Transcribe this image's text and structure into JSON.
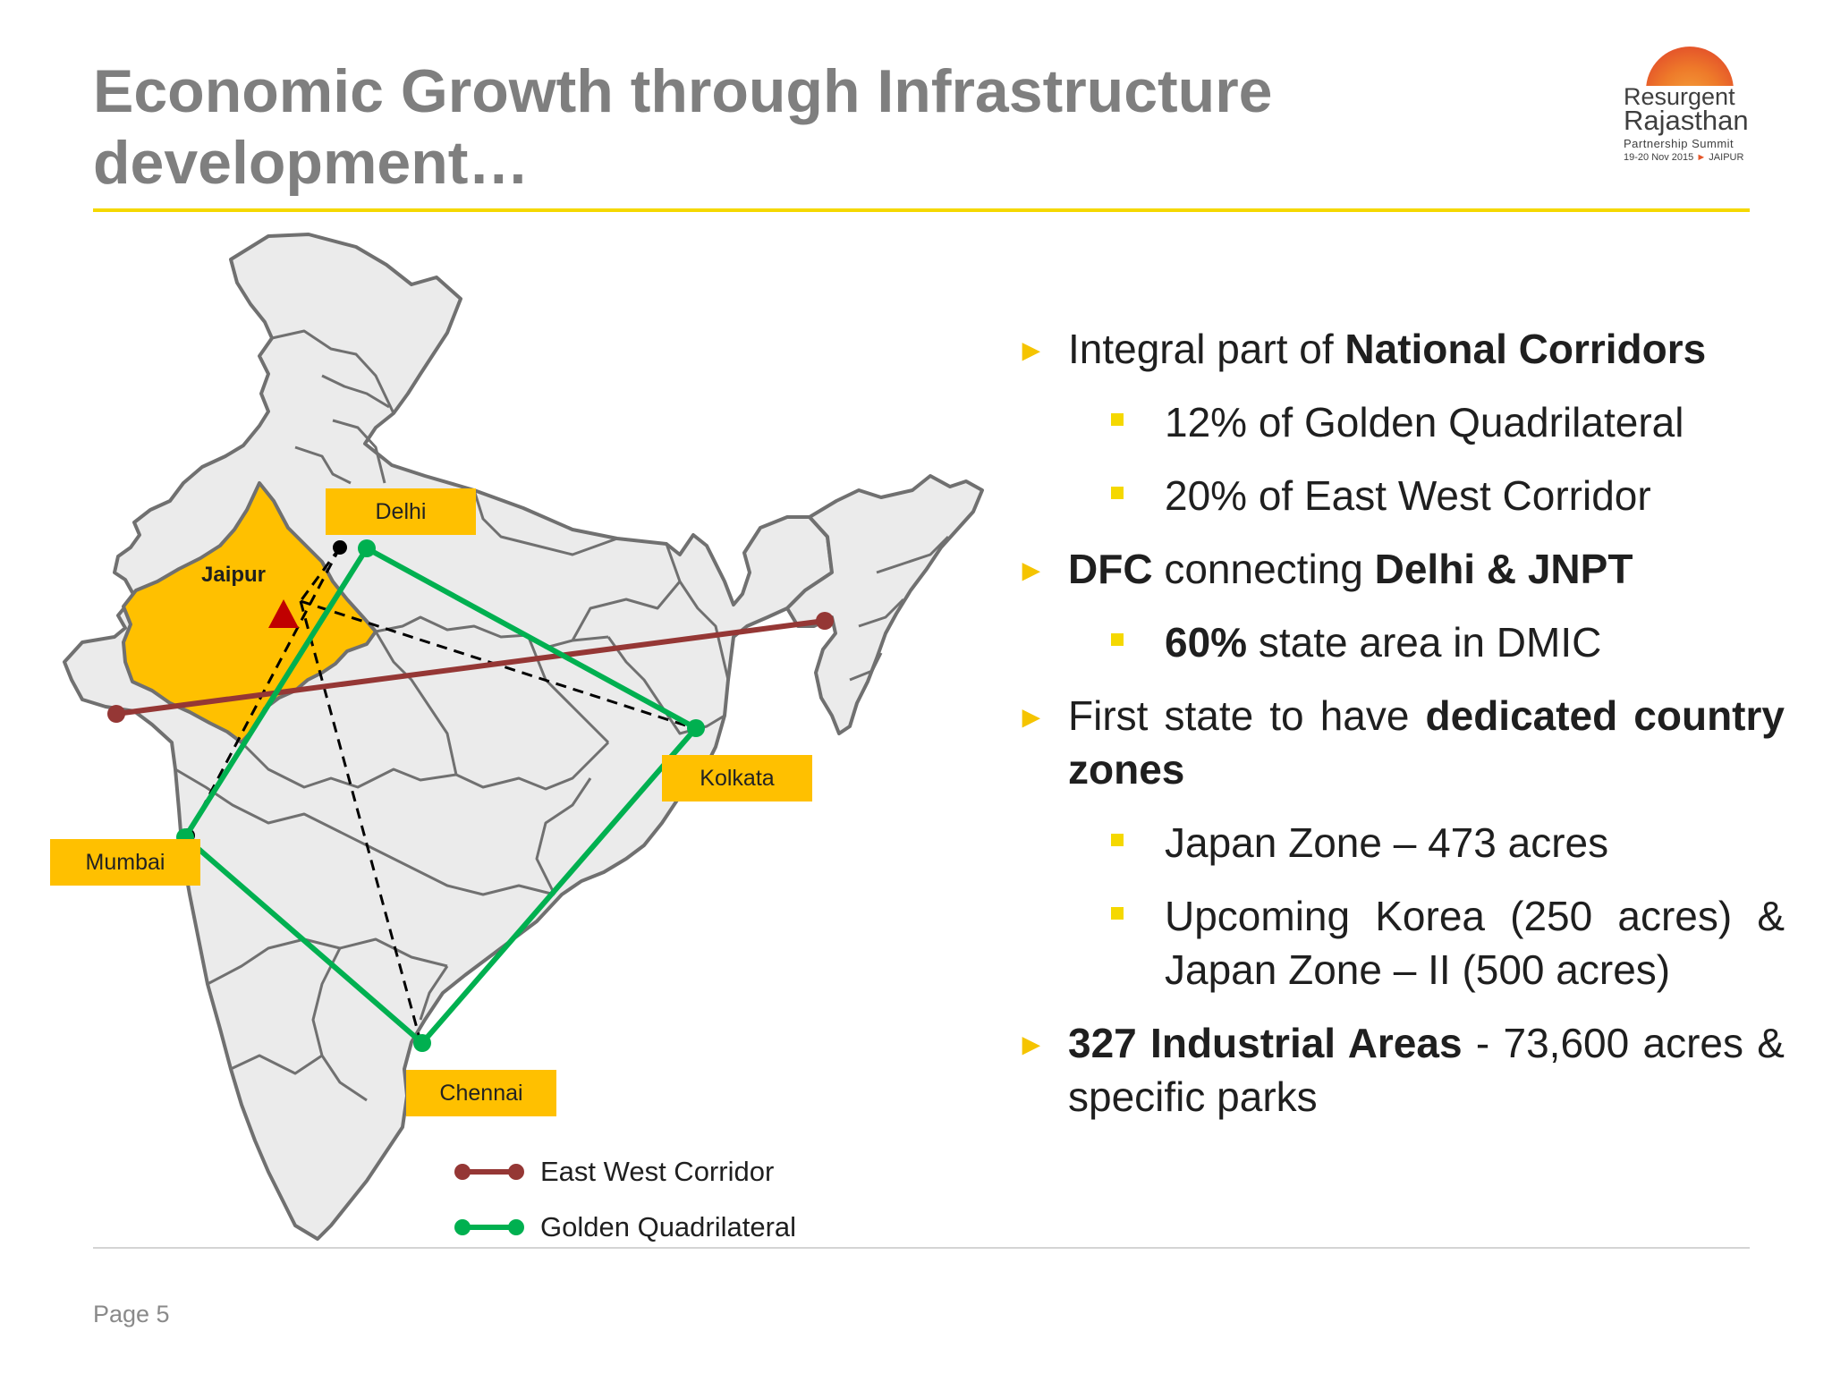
{
  "slide": {
    "title": "Economic Growth through Infrastructure development…",
    "page_number": "Page 5"
  },
  "logo": {
    "line1": "Resurgent",
    "line2": "Rajasthan",
    "line3": "Partnership Summit",
    "line4_date": "19-20 Nov 2015",
    "line4_arrow": "►",
    "line4_city": "JAIPUR"
  },
  "map": {
    "cities": {
      "delhi": "Delhi",
      "jaipur": "Jaipur",
      "kolkata": "Kolkata",
      "mumbai": "Mumbai",
      "chennai": "Chennai"
    },
    "legend": {
      "east_west": "East West Corridor",
      "golden_quad": "Golden Quadrilateral"
    },
    "colors": {
      "land": "#ebebeb",
      "border": "#707070",
      "rajasthan": "#ffc000",
      "east_west": "#953735",
      "golden_quad": "#00b050",
      "dmic_dashed": "#000000",
      "jaipur_marker": "#c00000"
    }
  },
  "bullets": [
    {
      "level": 1,
      "parts": [
        {
          "t": "Integral part of ",
          "b": false
        },
        {
          "t": "National Corridors",
          "b": true
        }
      ]
    },
    {
      "level": 2,
      "parts": [
        {
          "t": "12% of Golden Quadrilateral",
          "b": false
        }
      ]
    },
    {
      "level": 2,
      "parts": [
        {
          "t": "20% of East West Corridor",
          "b": false
        }
      ]
    },
    {
      "level": 1,
      "parts": [
        {
          "t": "DFC",
          "b": true
        },
        {
          "t": " connecting ",
          "b": false
        },
        {
          "t": "Delhi & JNPT",
          "b": true
        }
      ]
    },
    {
      "level": 2,
      "parts": [
        {
          "t": "60%",
          "b": true
        },
        {
          "t": " state area in DMIC",
          "b": false
        }
      ]
    },
    {
      "level": 1,
      "parts": [
        {
          "t": "First state to have ",
          "b": false
        },
        {
          "t": "dedicated country zones",
          "b": true
        }
      ]
    },
    {
      "level": 2,
      "parts": [
        {
          "t": "Japan Zone – 473 acres",
          "b": false
        }
      ]
    },
    {
      "level": 2,
      "parts": [
        {
          "t": "Upcoming Korea (250 acres) & Japan Zone – II (500 acres)",
          "b": false
        }
      ]
    },
    {
      "level": 1,
      "parts": [
        {
          "t": "327 Industrial Areas",
          "b": true
        },
        {
          "t": " - 73,600 acres & specific parks",
          "b": false
        }
      ]
    }
  ],
  "bullet_marks": {
    "level1": "►"
  }
}
